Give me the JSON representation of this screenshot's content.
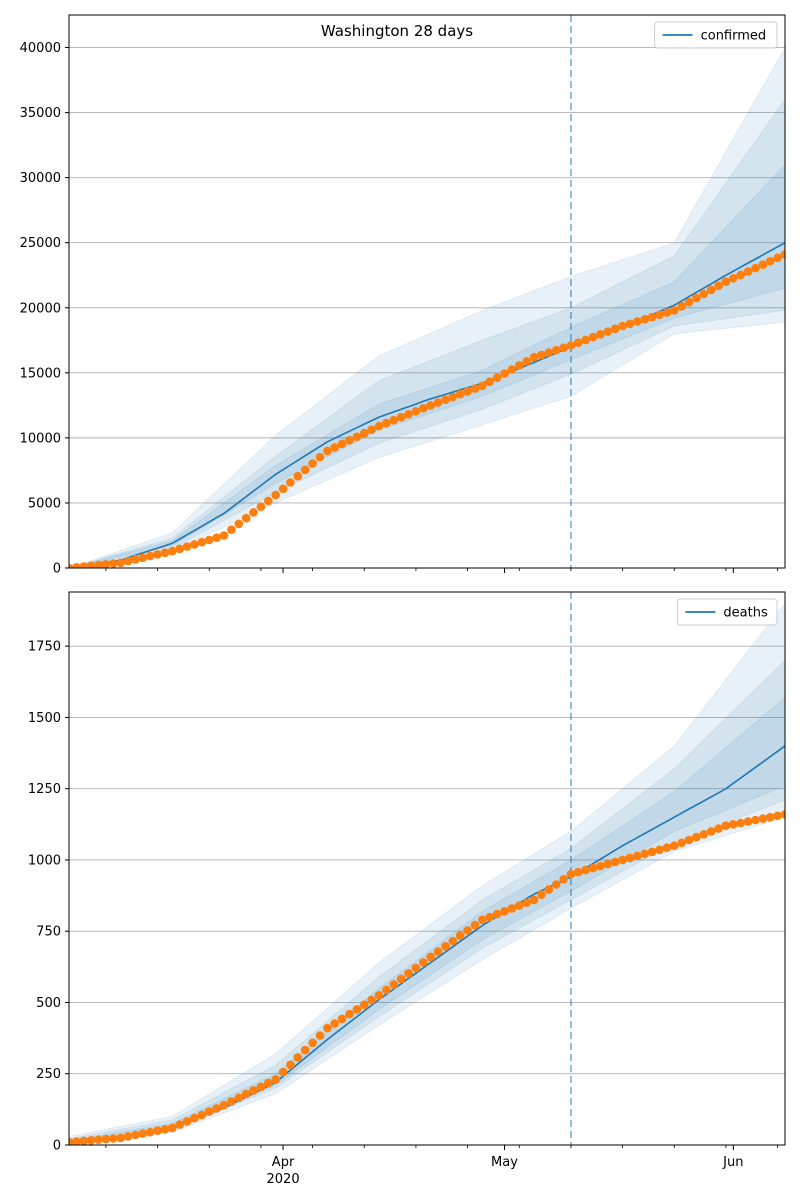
{
  "figure_title": "Washington 28 days",
  "chart_data": [
    {
      "type": "line",
      "title": "",
      "xlabel": "",
      "ylabel": "",
      "x_range": [
        "2020-03-03",
        "2020-06-08"
      ],
      "ylim": [
        0,
        42500
      ],
      "yticks": [
        0,
        5000,
        10000,
        15000,
        20000,
        25000,
        30000,
        35000,
        40000
      ],
      "grid": "y",
      "legend": "top-right",
      "cutoff_date": "2020-05-10",
      "series": [
        {
          "name": "confirmed",
          "style": "line",
          "x": [
            "2020-03-03",
            "2020-03-10",
            "2020-03-17",
            "2020-03-24",
            "2020-03-31",
            "2020-04-07",
            "2020-04-14",
            "2020-04-21",
            "2020-04-28",
            "2020-05-05",
            "2020-05-10",
            "2020-05-17",
            "2020-05-24",
            "2020-05-31",
            "2020-06-08"
          ],
          "values": [
            0,
            600,
            1900,
            4200,
            7200,
            9700,
            11600,
            13000,
            14200,
            15800,
            17000,
            18500,
            20200,
            22500,
            25000
          ]
        },
        {
          "name": "",
          "style": "markers",
          "x": [
            "2020-03-03",
            "2020-03-10",
            "2020-03-17",
            "2020-03-24",
            "2020-03-31",
            "2020-04-07",
            "2020-04-14",
            "2020-04-21",
            "2020-04-28",
            "2020-05-05",
            "2020-05-10",
            "2020-05-17",
            "2020-05-24",
            "2020-05-31",
            "2020-06-08"
          ],
          "values": [
            0,
            400,
            1300,
            2500,
            5600,
            9000,
            10900,
            12500,
            14000,
            16200,
            17100,
            18600,
            19800,
            22000,
            24100
          ]
        }
      ],
      "bands": [
        {
          "x": [
            "2020-03-03",
            "2020-03-17",
            "2020-03-31",
            "2020-04-14",
            "2020-04-28",
            "2020-05-10",
            "2020-05-24",
            "2020-06-08"
          ],
          "low": [
            0,
            1300,
            5000,
            8500,
            11000,
            13200,
            18000,
            18900
          ],
          "high": [
            0,
            2700,
            10200,
            16300,
            19800,
            22400,
            25000,
            40000
          ]
        },
        {
          "x": [
            "2020-03-03",
            "2020-03-17",
            "2020-03-31",
            "2020-04-14",
            "2020-04-28",
            "2020-05-10",
            "2020-05-24",
            "2020-06-08"
          ],
          "low": [
            0,
            1500,
            5800,
            9600,
            12200,
            14900,
            18600,
            19800
          ],
          "high": [
            0,
            2300,
            8600,
            14400,
            17500,
            20000,
            24000,
            36000
          ]
        },
        {
          "x": [
            "2020-03-03",
            "2020-03-17",
            "2020-03-31",
            "2020-04-14",
            "2020-04-28",
            "2020-05-10",
            "2020-05-24",
            "2020-06-08"
          ],
          "low": [
            0,
            1700,
            6500,
            10600,
            13200,
            16000,
            19200,
            21500
          ],
          "high": [
            0,
            2100,
            7900,
            12600,
            15200,
            18500,
            22000,
            31000
          ]
        }
      ]
    },
    {
      "type": "line",
      "title": "",
      "xlabel": "",
      "ylabel": "",
      "x_range": [
        "2020-03-03",
        "2020-06-08"
      ],
      "ylim": [
        0,
        1940
      ],
      "yticks": [
        0,
        250,
        500,
        750,
        1000,
        1250,
        1500,
        1750
      ],
      "xticks": [
        {
          "date": "2020-04-01",
          "label": "Apr",
          "sublabel": "2020"
        },
        {
          "date": "2020-05-01",
          "label": "May",
          "sublabel": ""
        },
        {
          "date": "2020-06-01",
          "label": "Jun",
          "sublabel": ""
        }
      ],
      "grid": "y",
      "legend": "top-right",
      "cutoff_date": "2020-05-10",
      "series": [
        {
          "name": "deaths",
          "style": "line",
          "x": [
            "2020-03-03",
            "2020-03-10",
            "2020-03-17",
            "2020-03-24",
            "2020-03-31",
            "2020-04-07",
            "2020-04-14",
            "2020-04-21",
            "2020-04-28",
            "2020-05-05",
            "2020-05-10",
            "2020-05-17",
            "2020-05-24",
            "2020-05-31",
            "2020-06-08"
          ],
          "values": [
            10,
            25,
            65,
            130,
            220,
            370,
            510,
            640,
            770,
            880,
            940,
            1050,
            1150,
            1250,
            1400
          ]
        },
        {
          "name": "",
          "style": "markers",
          "x": [
            "2020-03-03",
            "2020-03-10",
            "2020-03-17",
            "2020-03-24",
            "2020-03-31",
            "2020-04-07",
            "2020-04-14",
            "2020-04-21",
            "2020-04-28",
            "2020-05-05",
            "2020-05-10",
            "2020-05-17",
            "2020-05-24",
            "2020-05-31",
            "2020-06-08"
          ],
          "values": [
            10,
            25,
            60,
            140,
            230,
            410,
            525,
            660,
            790,
            860,
            950,
            1000,
            1050,
            1120,
            1160
          ]
        }
      ],
      "bands": [
        {
          "x": [
            "2020-03-03",
            "2020-03-17",
            "2020-03-31",
            "2020-04-14",
            "2020-04-28",
            "2020-05-10",
            "2020-05-24",
            "2020-06-08"
          ],
          "low": [
            0,
            45,
            180,
            420,
            650,
            830,
            1030,
            1150
          ],
          "high": [
            30,
            100,
            320,
            640,
            910,
            1100,
            1400,
            1900
          ]
        },
        {
          "x": [
            "2020-03-03",
            "2020-03-17",
            "2020-03-31",
            "2020-04-14",
            "2020-04-28",
            "2020-05-10",
            "2020-05-24",
            "2020-06-08"
          ],
          "low": [
            5,
            50,
            200,
            450,
            690,
            860,
            1060,
            1210
          ],
          "high": [
            22,
            88,
            280,
            590,
            860,
            1040,
            1320,
            1700
          ]
        },
        {
          "x": [
            "2020-03-03",
            "2020-03-17",
            "2020-03-31",
            "2020-04-14",
            "2020-04-28",
            "2020-05-10",
            "2020-05-24",
            "2020-06-08"
          ],
          "low": [
            8,
            56,
            210,
            475,
            720,
            890,
            1100,
            1260
          ],
          "high": [
            16,
            76,
            250,
            550,
            820,
            1000,
            1240,
            1570
          ]
        }
      ]
    }
  ],
  "colors": {
    "line": "#1f77b4",
    "markers": "#ff7f0e",
    "band": "#1f77b4",
    "grid": "#b0b0b0",
    "cutoff": "#1f77b4"
  }
}
